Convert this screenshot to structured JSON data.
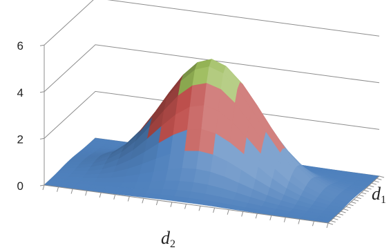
{
  "chart_data": {
    "type": "surface",
    "title": "",
    "zlim": [
      0,
      6
    ],
    "z_ticks": [
      "0",
      "2",
      "4",
      "6"
    ],
    "x_axis_label": {
      "base": "d",
      "sub": "2"
    },
    "y_axis_label": {
      "base": "d",
      "sub": "1"
    },
    "grid": true,
    "band_colors": [
      "#4F81BD",
      "#C0504D",
      "#9BBB59"
    ],
    "bands": [
      {
        "from": 0,
        "to": 2
      },
      {
        "from": 2,
        "to": 4
      },
      {
        "from": 4,
        "to": 6
      }
    ],
    "grid_size": [
      21,
      21
    ],
    "peak": 5.2,
    "peak_location": "center",
    "spread": 3.4
  }
}
